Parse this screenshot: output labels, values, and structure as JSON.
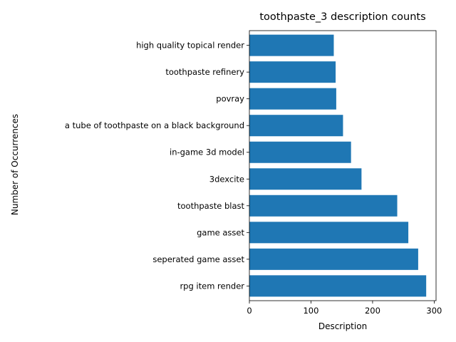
{
  "chart_data": {
    "type": "bar",
    "orientation": "horizontal",
    "title": "toothpaste_3 description counts",
    "xlabel": "Description",
    "ylabel": "Number of Occurrences",
    "categories": [
      "rpg item render",
      "seperated game asset",
      "game asset",
      "toothpaste blast",
      "3dexcite",
      "in-game 3d model",
      "a tube of toothpaste on a black background",
      "povray",
      "toothpaste refinery",
      "high quality topical render"
    ],
    "values": [
      287,
      274,
      258,
      240,
      182,
      165,
      152,
      141,
      140,
      137
    ],
    "xlim": [
      0,
      303
    ],
    "xticks": [
      0,
      100,
      200,
      300
    ],
    "grid": false,
    "bar_color": "#1f77b4"
  }
}
